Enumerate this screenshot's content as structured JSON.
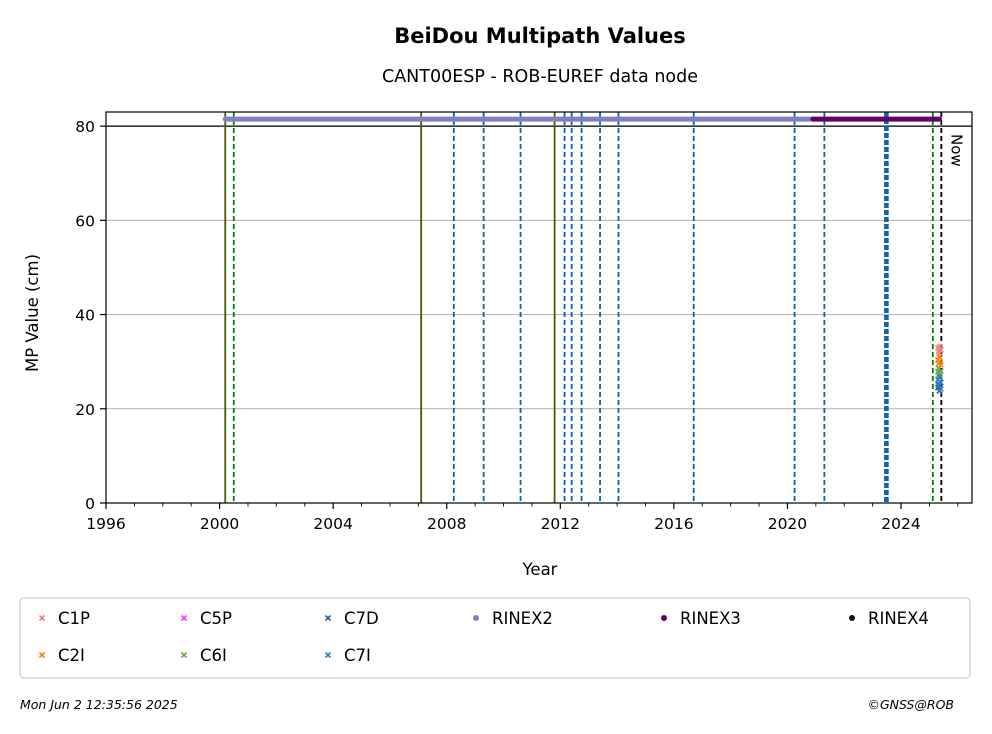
{
  "chart_data": {
    "type": "scatter",
    "title": "BeiDou Multipath Values",
    "subtitle": "CANT00ESP - ROB-EUREF data node",
    "xlabel": "Year",
    "ylabel": "MP Value (cm)",
    "xlim": [
      1996,
      2026.5
    ],
    "ylim": [
      0,
      83
    ],
    "xticks": [
      1996,
      2000,
      2004,
      2008,
      2012,
      2016,
      2020,
      2024
    ],
    "yticks": [
      0,
      20,
      40,
      60,
      80
    ],
    "grid": "horizontal",
    "legend_position": "bottom",
    "now_label": "Now",
    "now_x": 2025.42,
    "series": [
      {
        "name": "C1P",
        "color": "#f08080",
        "marker": "x",
        "points": [
          [
            2025.3,
            33.0
          ],
          [
            2025.32,
            32.2
          ],
          [
            2025.35,
            31.7
          ],
          [
            2025.37,
            33.2
          ],
          [
            2025.4,
            32.5
          ]
        ]
      },
      {
        "name": "C2I",
        "color": "#ff7f0e",
        "marker": "x",
        "points": [
          [
            2025.3,
            30.4
          ],
          [
            2025.32,
            29.6
          ],
          [
            2025.35,
            31.0
          ],
          [
            2025.37,
            30.1
          ],
          [
            2025.4,
            29.3
          ]
        ]
      },
      {
        "name": "C5P",
        "color": "#ff33ff",
        "marker": "x",
        "points": []
      },
      {
        "name": "C6I",
        "color": "#6aa84f",
        "marker": "x",
        "points": [
          [
            2025.3,
            27.9
          ],
          [
            2025.32,
            28.6
          ],
          [
            2025.35,
            27.3
          ],
          [
            2025.37,
            26.8
          ],
          [
            2025.4,
            28.0
          ]
        ]
      },
      {
        "name": "C7D",
        "color": "#2a5d9f",
        "marker": "x",
        "points": [
          [
            2025.3,
            24.5
          ],
          [
            2025.32,
            25.3
          ],
          [
            2025.35,
            23.8
          ],
          [
            2025.37,
            24.9
          ],
          [
            2025.4,
            25.6
          ]
        ]
      },
      {
        "name": "C7I",
        "color": "#2f7fc1",
        "marker": "x",
        "points": [
          [
            2025.3,
            26.2
          ],
          [
            2025.32,
            25.0
          ],
          [
            2025.35,
            26.8
          ],
          [
            2025.37,
            25.7
          ],
          [
            2025.4,
            24.2
          ]
        ]
      },
      {
        "name": "RINEX2",
        "color": "#8080c0",
        "marker": "dot",
        "y": 81.5,
        "x_range": [
          2000.2,
          2020.9
        ]
      },
      {
        "name": "RINEX3",
        "color": "#660066",
        "marker": "dot",
        "y": 81.5,
        "x_range": [
          2020.9,
          2025.35
        ]
      },
      {
        "name": "RINEX4",
        "color": "#1a0a1a",
        "marker": "dot",
        "points": []
      }
    ],
    "legend": [
      [
        "C1P",
        "C5P",
        "C7D",
        "RINEX2",
        "RINEX3",
        "RINEX4"
      ],
      [
        "C2I",
        "C6I",
        "C7I"
      ]
    ],
    "event_lines": [
      {
        "x": 2000.2,
        "style": "green-red"
      },
      {
        "x": 2000.5,
        "style": "green"
      },
      {
        "x": 2007.1,
        "style": "green-red"
      },
      {
        "x": 2008.25,
        "style": "blue"
      },
      {
        "x": 2009.3,
        "style": "blue"
      },
      {
        "x": 2010.6,
        "style": "blue"
      },
      {
        "x": 2011.8,
        "style": "green-red"
      },
      {
        "x": 2012.15,
        "style": "blue"
      },
      {
        "x": 2012.4,
        "style": "blue"
      },
      {
        "x": 2012.75,
        "style": "blue"
      },
      {
        "x": 2013.4,
        "style": "blue"
      },
      {
        "x": 2014.05,
        "style": "blue"
      },
      {
        "x": 2016.7,
        "style": "blue"
      },
      {
        "x": 2020.25,
        "style": "blue"
      },
      {
        "x": 2021.3,
        "style": "blue"
      },
      {
        "x": 2023.45,
        "style": "blue-thick"
      },
      {
        "x": 2023.52,
        "style": "blue-thick"
      },
      {
        "x": 2025.12,
        "style": "green"
      },
      {
        "x": 2025.42,
        "style": "black"
      }
    ]
  },
  "footer": {
    "timestamp": "Mon Jun  2 12:35:56 2025",
    "copyright": "©GNSS@ROB"
  }
}
